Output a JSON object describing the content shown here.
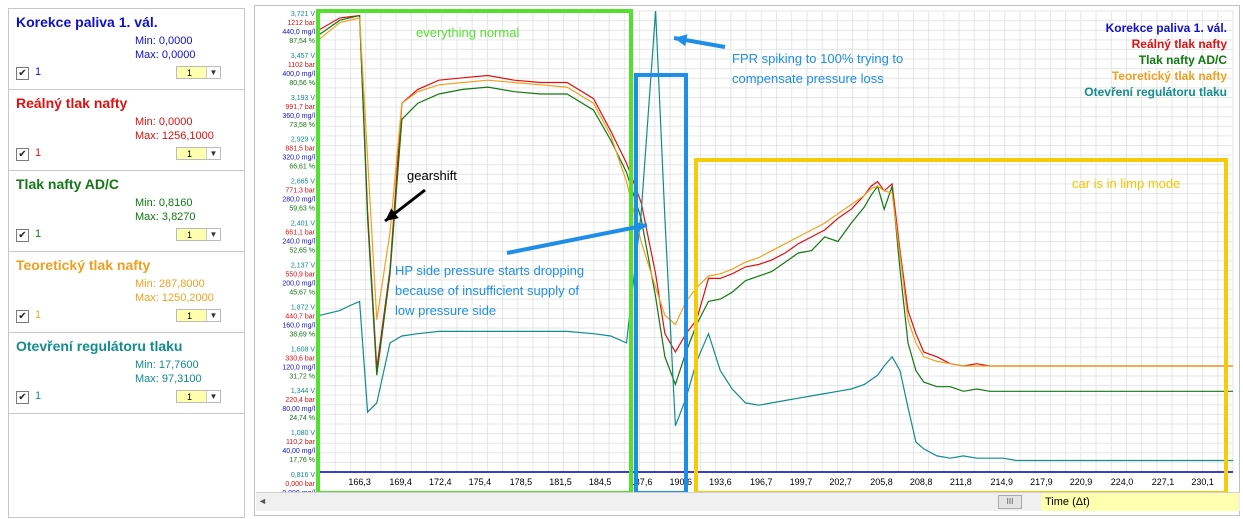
{
  "sidebar": {
    "sections": [
      {
        "title": "Korekce paliva 1. vál.",
        "min": "Min: 0,0000",
        "max": "Max: 0,0000",
        "check_label": "1",
        "select_value": "1",
        "color": "#1010c8"
      },
      {
        "title": "Reálný tlak nafty",
        "min": "Min: 0,0000",
        "max": "Max: 1256,1000",
        "check_label": "1",
        "select_value": "1",
        "color": "#e01010"
      },
      {
        "title": "Tlak nafty AD/C",
        "min": "Min: 0,8160",
        "max": "Max: 3,8270",
        "check_label": "1",
        "select_value": "1",
        "color": "#127812"
      },
      {
        "title": "Teoretický tlak nafty",
        "min": "Min: 287,8000",
        "max": "Max: 1250,2000",
        "check_label": "1",
        "select_value": "1",
        "color": "#f0a020"
      },
      {
        "title": "Otevření regulátoru tlaku",
        "min": "Min: 17,7600",
        "max": "Max: 97,3100",
        "check_label": "1",
        "select_value": "1",
        "color": "#128c8c"
      }
    ]
  },
  "scrollbar": {
    "time_label": "Time (Δt)",
    "left_arrow": "◄",
    "thumb": "III"
  },
  "chart_data": {
    "type": "line",
    "x_tick_labels": [
      "166,3",
      "169,4",
      "172,4",
      "175,4",
      "178,5",
      "181,5",
      "184,5",
      "187,6",
      "190,6",
      "193,6",
      "196,7",
      "199,7",
      "202,7",
      "205,8",
      "208,8",
      "211,8",
      "214,9",
      "217,9",
      "220,9",
      "224,0",
      "227,1",
      "230,1"
    ],
    "x_range": [
      163.3,
      232.4
    ],
    "y_range_norm": [
      0,
      100
    ],
    "y_axis_labels": [
      [
        "3,721 V",
        "1212 bar",
        "440,0 mg/l",
        "87,54 %"
      ],
      [
        "3,457 V",
        "1102 bar",
        "400,0 mg/l",
        "80,56 %"
      ],
      [
        "3,193 V",
        "991,7 bar",
        "360,0 mg/l",
        "73,58 %"
      ],
      [
        "2,929 V",
        "881,5 bar",
        "320,0 mg/l",
        "66,61 %"
      ],
      [
        "2,665 V",
        "771,3 bar",
        "280,0 mg/l",
        "59,63 %"
      ],
      [
        "2,401 V",
        "661,1 bar",
        "240,0 mg/l",
        "52,65 %"
      ],
      [
        "2,137 V",
        "550,9 bar",
        "200,0 mg/l",
        "45,67 %"
      ],
      [
        "1,872 V",
        "440,7 bar",
        "160,0 mg/l",
        "38,69 %"
      ],
      [
        "1,608 V",
        "330,6 bar",
        "120,0 mg/l",
        "31,72 %"
      ],
      [
        "1,344 V",
        "220,4 bar",
        "80,00 mg/l",
        "24,74 %"
      ],
      [
        "1,080 V",
        "110,2 bar",
        "40,00 mg/l",
        "17,76 %"
      ],
      [
        "0,816 V",
        "0,000 bar",
        "0,000 mg/l",
        ""
      ]
    ],
    "y_label_colors": [
      "#128c8c",
      "#e01010",
      "#1010c8",
      "#127812"
    ],
    "series": [
      {
        "name": "Korekce paliva 1. vál.",
        "color": "#1010c8",
        "x": [
          163.3,
          232.4
        ],
        "y": [
          0,
          0
        ]
      },
      {
        "name": "Reálný tlak nafty",
        "color": "#e01010",
        "x": [
          163.3,
          164.8,
          166.3,
          166.9,
          167.6,
          168.6,
          169.5,
          170.7,
          172.3,
          174.1,
          176.0,
          178.0,
          180.0,
          182.0,
          184.0,
          185.3,
          186.5,
          187.6,
          188.7,
          189.4,
          190.2,
          191.0,
          191.8,
          192.7,
          193.6,
          194.5,
          195.5,
          196.5,
          197.5,
          198.5,
          199.5,
          200.5,
          201.5,
          202.5,
          203.5,
          204.5,
          205.0,
          205.5,
          206.0,
          206.6,
          207.2,
          207.8,
          208.4,
          209.0,
          210.0,
          211.0,
          212.0,
          213.0,
          214.0,
          215.0,
          216.0,
          217.0,
          218.0,
          219.0,
          220.0,
          221.0,
          222.0,
          223.0,
          224.0,
          225.0,
          226.0,
          227.0,
          228.0,
          229.0,
          230.0,
          231.0,
          232.4
        ],
        "y": [
          96.0,
          98.5,
          99.0,
          56.5,
          22.5,
          44.0,
          80.0,
          83.0,
          85.0,
          85.5,
          86.0,
          85.0,
          84.5,
          84.5,
          81.0,
          74.0,
          67.0,
          58.5,
          43.0,
          30.0,
          26.0,
          30.0,
          33.0,
          42.0,
          42.0,
          43.0,
          44.5,
          45.0,
          46.0,
          47.5,
          49.5,
          51.0,
          52.5,
          55.0,
          57.0,
          60.0,
          62.0,
          63.0,
          61.0,
          62.5,
          48.0,
          35.0,
          30.0,
          26.0,
          25.0,
          23.5,
          23.0,
          23.5,
          23.0,
          23.0,
          23.0,
          23.0,
          23.0,
          23.0,
          23.0,
          23.0,
          23.0,
          23.0,
          23.0,
          23.0,
          23.0,
          23.0,
          23.0,
          23.0,
          23.0,
          23.0,
          23.0
        ]
      },
      {
        "name": "Tlak nafty AD/C",
        "color": "#127812",
        "x": [
          163.3,
          164.8,
          166.3,
          166.9,
          167.6,
          168.6,
          169.5,
          170.7,
          172.3,
          174.1,
          176.0,
          178.0,
          180.0,
          182.0,
          184.0,
          185.3,
          186.5,
          187.6,
          188.7,
          189.4,
          190.2,
          191.0,
          191.8,
          192.7,
          193.6,
          194.5,
          195.5,
          196.5,
          197.5,
          198.5,
          199.5,
          200.5,
          201.5,
          202.5,
          203.5,
          204.5,
          205.0,
          205.5,
          206.0,
          206.6,
          207.2,
          207.8,
          208.4,
          209.0,
          210.0,
          211.0,
          212.0,
          213.0,
          214.0,
          215.0,
          216.0,
          217.0,
          218.0,
          219.0,
          220.0,
          221.0,
          222.0,
          223.0,
          224.0,
          225.0,
          226.0,
          227.0,
          228.0,
          229.0,
          230.0,
          231.0,
          232.4
        ],
        "y": [
          95.0,
          98.0,
          99.0,
          55.0,
          21.0,
          43.0,
          76.5,
          80.0,
          82.0,
          83.0,
          83.5,
          82.5,
          82.0,
          82.0,
          78.5,
          72.0,
          65.0,
          55.0,
          38.0,
          25.0,
          19.0,
          26.0,
          32.0,
          37.0,
          37.5,
          39.0,
          41.5,
          42.5,
          43.5,
          45.5,
          47.5,
          48.0,
          51.0,
          50.0,
          54.0,
          57.5,
          60.0,
          62.0,
          57.0,
          62.0,
          44.0,
          28.0,
          22.0,
          19.5,
          18.5,
          18.5,
          17.5,
          18.0,
          17.5,
          17.5,
          17.5,
          17.5,
          17.5,
          17.5,
          17.5,
          17.5,
          17.5,
          17.5,
          17.5,
          17.5,
          17.5,
          17.5,
          17.5,
          17.5,
          17.5,
          17.5,
          17.5
        ]
      },
      {
        "name": "Teoretický tlak nafty",
        "color": "#f0a020",
        "x": [
          163.3,
          164.8,
          166.3,
          166.9,
          167.6,
          168.6,
          169.5,
          170.7,
          172.3,
          174.1,
          176.0,
          178.0,
          180.0,
          182.0,
          184.0,
          185.3,
          186.5,
          187.6,
          188.7,
          189.4,
          190.2,
          191.0,
          191.8,
          192.7,
          193.6,
          194.5,
          195.5,
          196.5,
          197.5,
          198.5,
          199.5,
          200.5,
          201.5,
          202.5,
          203.5,
          204.5,
          205.0,
          205.5,
          206.0,
          206.6,
          207.2,
          207.8,
          208.4,
          209.0,
          210.0,
          211.0,
          212.0,
          213.0,
          214.0,
          215.0,
          216.0,
          217.0,
          218.0,
          219.0,
          220.0,
          221.0,
          222.0,
          223.0,
          224.0,
          225.0,
          226.0,
          227.0,
          228.0,
          229.0,
          230.0,
          231.0,
          232.4
        ],
        "y": [
          94.0,
          97.5,
          98.5,
          68.0,
          33.0,
          52.0,
          80.0,
          82.5,
          84.0,
          84.5,
          85.0,
          84.5,
          84.0,
          83.5,
          80.0,
          73.0,
          63.0,
          50.0,
          40.0,
          34.0,
          32.0,
          37.0,
          40.0,
          42.5,
          43.0,
          44.0,
          45.5,
          46.5,
          48.0,
          49.5,
          51.0,
          52.5,
          54.0,
          56.0,
          58.0,
          60.0,
          61.5,
          62.0,
          61.0,
          60.5,
          47.0,
          33.0,
          28.0,
          25.0,
          24.0,
          23.5,
          23.0,
          23.0,
          23.0,
          23.0,
          23.0,
          23.0,
          23.0,
          23.0,
          23.0,
          23.0,
          23.0,
          23.0,
          23.0,
          23.0,
          23.0,
          23.0,
          23.0,
          23.0,
          23.0,
          23.0,
          23.0
        ]
      },
      {
        "name": "Otevření regulátoru tlaku",
        "color": "#128c8c",
        "x": [
          163.3,
          164.8,
          165.5,
          166.3,
          166.9,
          167.6,
          168.6,
          169.5,
          170.7,
          172.3,
          174.1,
          176.0,
          178.0,
          180.0,
          182.0,
          184.0,
          185.3,
          186.5,
          187.6,
          188.7,
          189.4,
          190.2,
          191.0,
          191.8,
          192.7,
          193.6,
          194.5,
          195.5,
          196.5,
          197.5,
          198.5,
          199.5,
          200.5,
          201.5,
          202.5,
          203.5,
          204.5,
          205.0,
          205.5,
          206.0,
          206.6,
          207.2,
          207.8,
          208.4,
          209.0,
          210.0,
          211.0,
          212.0,
          213.0,
          214.0,
          215.0,
          216.0,
          217.0,
          218.0,
          219.0,
          220.0,
          221.0,
          222.0,
          223.0,
          224.0,
          225.0,
          226.0,
          227.0,
          228.0,
          229.0,
          230.0,
          231.0,
          232.4
        ],
        "y": [
          34.0,
          35.0,
          36.0,
          37.0,
          13.0,
          15.0,
          28.0,
          29.5,
          30.0,
          30.5,
          30.5,
          30.5,
          30.5,
          30.5,
          30.5,
          30.0,
          29.5,
          28.0,
          56.0,
          100.0,
          55.0,
          10.0,
          16.0,
          24.0,
          30.0,
          22.0,
          18.0,
          15.0,
          14.5,
          15.0,
          15.5,
          16.0,
          16.5,
          17.0,
          17.5,
          18.0,
          19.0,
          20.0,
          21.0,
          23.0,
          25.0,
          22.0,
          14.0,
          6.5,
          5.0,
          3.5,
          3.0,
          3.5,
          3.0,
          3.0,
          3.0,
          2.5,
          2.5,
          2.5,
          2.5,
          2.5,
          2.5,
          2.5,
          2.5,
          2.5,
          2.5,
          2.5,
          2.5,
          2.5,
          2.5,
          2.5,
          2.5,
          2.5
        ]
      }
    ],
    "annotations": [
      {
        "text": "everything normal",
        "color": "#55e030"
      },
      {
        "text": "gearshift",
        "color": "#000000"
      },
      {
        "text": "FPR spiking to 100% trying to",
        "color": "#1e8ee8"
      },
      {
        "text": "compensate pressure loss",
        "color": "#1e8ee8"
      },
      {
        "text": "HP side pressure starts dropping",
        "color": "#1e8ee8"
      },
      {
        "text": "because of insufficient supply of",
        "color": "#1e8ee8"
      },
      {
        "text": "low pressure side",
        "color": "#1e8ee8"
      },
      {
        "text": "car is in limp mode",
        "color": "#f0c800"
      }
    ],
    "legend_position": "top-right",
    "grid": true
  }
}
